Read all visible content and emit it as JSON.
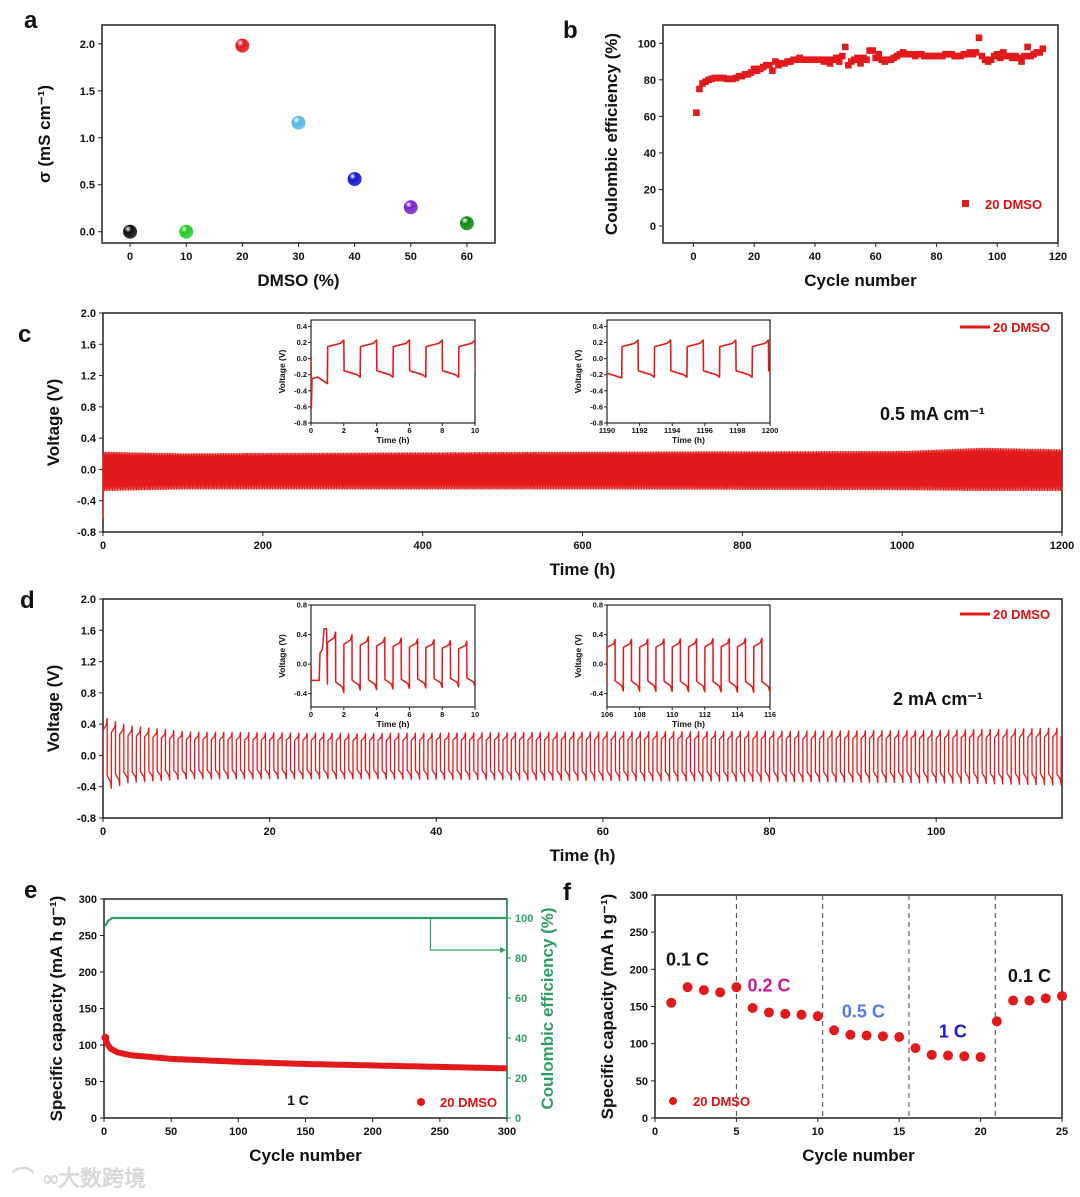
{
  "colors": {
    "red": "#e31a1c",
    "green_axis": "#2e9e63",
    "rate_02": "#d4168c",
    "rate_05": "#5a78e0",
    "rate_1": "#1a1acc"
  },
  "watermark": "大数跨境",
  "chart_data": [
    {
      "panel": "a",
      "type": "scatter",
      "xlabel": "DMSO (%)",
      "ylabel": "σ (mS cm⁻¹)",
      "xlim": [
        -5,
        65
      ],
      "ylim": [
        -0.12,
        2.2
      ],
      "x_ticks": [
        0,
        10,
        20,
        30,
        40,
        50,
        60
      ],
      "x_tick_labels": [
        "0",
        "10",
        "20",
        "30",
        "40",
        "50",
        "60"
      ],
      "y_ticks": [
        0,
        0.5,
        1.0,
        1.5,
        2.0
      ],
      "y_tick_labels": [
        "0.0",
        "0.5",
        "1.0",
        "1.5",
        "2.0"
      ],
      "x": [
        0,
        10,
        20,
        30,
        40,
        50,
        60
      ],
      "y": [
        0.0,
        0.0,
        1.98,
        1.16,
        0.56,
        0.26,
        0.09
      ],
      "point_colors": [
        "#111111",
        "#22cc22",
        "#e31a1c",
        "#55bbee",
        "#1515d0",
        "#7a22cc",
        "#128a12"
      ]
    },
    {
      "panel": "b",
      "type": "scatter",
      "xlabel": "Cycle number",
      "ylabel": "Coulombic efficiency (%)",
      "xlim": [
        -10,
        120
      ],
      "ylim": [
        -9.3,
        110
      ],
      "x_ticks": [
        0,
        20,
        40,
        60,
        80,
        100,
        120
      ],
      "x_tick_labels": [
        "0",
        "20",
        "40",
        "60",
        "80",
        "100",
        "120"
      ],
      "y_ticks": [
        0,
        20,
        40,
        60,
        80,
        100
      ],
      "y_tick_labels": [
        "0",
        "20",
        "40",
        "60",
        "80",
        "100"
      ],
      "legend": "20 DMSO",
      "legend_position": "bottom-right",
      "x_start": 1,
      "values": [
        62,
        75,
        78,
        79,
        80,
        80.5,
        81,
        81,
        81,
        81,
        80.5,
        80.5,
        80.5,
        81,
        82,
        82,
        83,
        83,
        84,
        86,
        85,
        86,
        87,
        88,
        88,
        85,
        90,
        88,
        89,
        89,
        90,
        90,
        91,
        91,
        92,
        91,
        91,
        91,
        91,
        91,
        91,
        91,
        90,
        91,
        89,
        91,
        92,
        90,
        93,
        98,
        88,
        90,
        91,
        92,
        89,
        92,
        91,
        96,
        96,
        92,
        94,
        91,
        90,
        91,
        91,
        92,
        93,
        94,
        95,
        94,
        94,
        94,
        93,
        94,
        94,
        93,
        93,
        93,
        93,
        93,
        93,
        93,
        94,
        94,
        94,
        93,
        93,
        93,
        94,
        94,
        95,
        94,
        95,
        103,
        93,
        91,
        90,
        91,
        93,
        94,
        92,
        95,
        93,
        93,
        92,
        93,
        92,
        90,
        93,
        98,
        93,
        94,
        95,
        95,
        97
      ]
    },
    {
      "panel": "c",
      "type": "line",
      "xlabel": "Time (h)",
      "ylabel": "Voltage (V)",
      "xlim": [
        0,
        1200
      ],
      "ylim": [
        -0.8,
        2.0
      ],
      "x_ticks": [
        0,
        200,
        400,
        600,
        800,
        1000,
        1200
      ],
      "x_tick_labels": [
        "0",
        "200",
        "400",
        "600",
        "800",
        "1000",
        "1200"
      ],
      "y_ticks": [
        -0.8,
        -0.4,
        0,
        0.4,
        0.8,
        1.2,
        1.6,
        2.0
      ],
      "y_tick_labels": [
        "-0.8",
        "-0.4",
        "0.0",
        "0.4",
        "0.8",
        "1.2",
        "1.6",
        "2.0"
      ],
      "legend": "20 DMSO",
      "legend_position": "top-right",
      "annotation": "0.5 mA cm⁻¹",
      "period_h": 2,
      "initial_V": -0.62,
      "envelope": {
        "time": [
          0,
          100,
          600,
          1000,
          1100,
          1200
        ],
        "upper": [
          0.22,
          0.2,
          0.22,
          0.23,
          0.27,
          0.25
        ],
        "lower": [
          -0.27,
          -0.25,
          -0.25,
          -0.26,
          -0.27,
          -0.27
        ]
      },
      "insets": [
        {
          "xlim": [
            0,
            10
          ],
          "ylim": [
            -0.8,
            0.48
          ],
          "x_ticks": [
            0,
            2,
            4,
            6,
            8,
            10
          ],
          "x_tick_labels": [
            "0",
            "2",
            "4",
            "6",
            "8",
            "10"
          ],
          "y_ticks": [
            -0.8,
            -0.6,
            -0.4,
            -0.2,
            0,
            0.2,
            0.4
          ],
          "y_tick_labels": [
            "-0.8",
            "-0.6",
            "-0.4",
            "-0.2",
            "0.0",
            "0.2",
            "0.4"
          ],
          "xlabel": "Time (h)",
          "ylabel": "Voltage (V)"
        },
        {
          "xlim": [
            1190,
            1200
          ],
          "ylim": [
            -0.8,
            0.48
          ],
          "x_ticks": [
            1190,
            1192,
            1194,
            1196,
            1198,
            1200
          ],
          "x_tick_labels": [
            "1190",
            "1192",
            "1194",
            "1196",
            "1198",
            "1200"
          ],
          "y_ticks": [
            -0.8,
            -0.6,
            -0.4,
            -0.2,
            0,
            0.2,
            0.4
          ],
          "y_tick_labels": [
            "-0.8",
            "-0.6",
            "-0.4",
            "-0.2",
            "0.0",
            "0.2",
            "0.4"
          ],
          "xlabel": "Time (h)",
          "ylabel": "Voltage (V)"
        }
      ]
    },
    {
      "panel": "d",
      "type": "line",
      "xlabel": "Time (h)",
      "ylabel": "Voltage (V)",
      "xlim": [
        0,
        115.1
      ],
      "ylim": [
        -0.8,
        2.0
      ],
      "x_ticks": [
        0,
        20,
        40,
        60,
        80,
        100
      ],
      "x_tick_labels": [
        "0",
        "20",
        "40",
        "60",
        "80",
        "100"
      ],
      "y_ticks": [
        -0.8,
        -0.4,
        0,
        0.4,
        0.8,
        1.2,
        1.6,
        2.0
      ],
      "y_tick_labels": [
        "-0.8",
        "-0.4",
        "0.0",
        "0.4",
        "0.8",
        "1.2",
        "1.6",
        "2.0"
      ],
      "legend": "20 DMSO",
      "legend_position": "top-right",
      "annotation": "2 mA cm⁻¹",
      "period_h": 1,
      "envelope": {
        "time": [
          0,
          1,
          3,
          10,
          30,
          60,
          100,
          115
        ],
        "upper": [
          0.5,
          0.45,
          0.38,
          0.3,
          0.28,
          0.3,
          0.32,
          0.35
        ],
        "lower": [
          -0.45,
          -0.42,
          -0.35,
          -0.3,
          -0.3,
          -0.32,
          -0.35,
          -0.38
        ]
      },
      "insets": [
        {
          "xlim": [
            0,
            10
          ],
          "ylim": [
            -0.58,
            0.8
          ],
          "x_ticks": [
            0,
            2,
            4,
            6,
            8,
            10
          ],
          "x_tick_labels": [
            "0",
            "2",
            "4",
            "6",
            "8",
            "10"
          ],
          "y_ticks": [
            -0.4,
            0,
            0.4,
            0.8
          ],
          "y_tick_labels": [
            "-0.4",
            "0.0",
            "0.4",
            "0.8"
          ],
          "xlabel": "Time (h)",
          "ylabel": "Voltage (V)"
        },
        {
          "xlim": [
            106,
            116
          ],
          "ylim": [
            -0.58,
            0.8
          ],
          "x_ticks": [
            106,
            108,
            110,
            112,
            114,
            116
          ],
          "x_tick_labels": [
            "106",
            "108",
            "110",
            "112",
            "114",
            "116"
          ],
          "y_ticks": [
            -0.4,
            0,
            0.4,
            0.8
          ],
          "y_tick_labels": [
            "-0.4",
            "0.0",
            "0.4",
            "0.8"
          ],
          "xlabel": "Time (h)",
          "ylabel": "Voltage (V)"
        }
      ]
    },
    {
      "panel": "e",
      "type": "line",
      "xlabel": "Cycle number",
      "ylabel": "Specific capacity (mA h g⁻¹)",
      "ylabel_right": "Coulombic efficiency (%)",
      "xlim": [
        0,
        300
      ],
      "ylim": [
        0,
        300
      ],
      "ylim_right": [
        0,
        109.5
      ],
      "x_ticks": [
        0,
        50,
        100,
        150,
        200,
        250,
        300
      ],
      "x_tick_labels": [
        "0",
        "50",
        "100",
        "150",
        "200",
        "250",
        "300"
      ],
      "y_ticks": [
        0,
        50,
        100,
        150,
        200,
        250,
        300
      ],
      "y_tick_labels": [
        "0",
        "50",
        "100",
        "150",
        "200",
        "250",
        "300"
      ],
      "y_ticks_right": [
        0,
        20,
        40,
        60,
        80,
        100
      ],
      "y_tick_labels_right": [
        "0",
        "20",
        "40",
        "60",
        "80",
        "100"
      ],
      "legend": "20 DMSO",
      "legend_position": "bottom-right",
      "annotation": "1 C",
      "capacity": {
        "x": [
          1,
          2,
          3,
          5,
          10,
          20,
          50,
          100,
          150,
          200,
          250,
          300
        ],
        "y": [
          110,
          104,
          100,
          95,
          90,
          86,
          81,
          77,
          74,
          72,
          70,
          68
        ]
      },
      "efficiency": {
        "x": [
          1,
          3,
          6,
          300
        ],
        "y": [
          96,
          98.5,
          100,
          100
        ]
      }
    },
    {
      "panel": "f",
      "type": "scatter",
      "xlabel": "Cycle number",
      "ylabel": "Specific capacity (mA h g⁻¹)",
      "xlim": [
        0,
        25
      ],
      "ylim": [
        0,
        300
      ],
      "x_ticks": [
        0,
        5,
        10,
        15,
        20,
        25
      ],
      "x_tick_labels": [
        "0",
        "5",
        "10",
        "15",
        "20",
        "25"
      ],
      "y_ticks": [
        0,
        50,
        100,
        150,
        200,
        250,
        300
      ],
      "y_tick_labels": [
        "0",
        "50",
        "100",
        "150",
        "200",
        "250",
        "300"
      ],
      "legend": "20 DMSO",
      "legend_position": "bottom-left",
      "x": [
        1,
        2,
        3,
        4,
        5,
        6,
        7,
        8,
        9,
        10,
        11,
        12,
        13,
        14,
        15,
        16,
        17,
        18,
        19,
        20,
        21,
        22,
        23,
        24,
        25
      ],
      "y": [
        155,
        176,
        172,
        169,
        176,
        148,
        142,
        140,
        139,
        137,
        118,
        112,
        111,
        110,
        109,
        94,
        85,
        84,
        83,
        82,
        130,
        158,
        158,
        161,
        164
      ],
      "dividers": [
        5,
        10.3,
        15.6,
        20.9
      ],
      "rate_labels": [
        {
          "text": "0.1 C",
          "x": 2.0,
          "y": 205,
          "color": "#111111"
        },
        {
          "text": "0.2 C",
          "x": 7.0,
          "y": 170,
          "color": "#d4168c"
        },
        {
          "text": "0.5 C",
          "x": 12.8,
          "y": 135,
          "color": "#5a78e0"
        },
        {
          "text": "1 C",
          "x": 18.3,
          "y": 108,
          "color": "#1a1acc"
        },
        {
          "text": "0.1 C",
          "x": 23.0,
          "y": 183,
          "color": "#111111"
        }
      ]
    }
  ]
}
